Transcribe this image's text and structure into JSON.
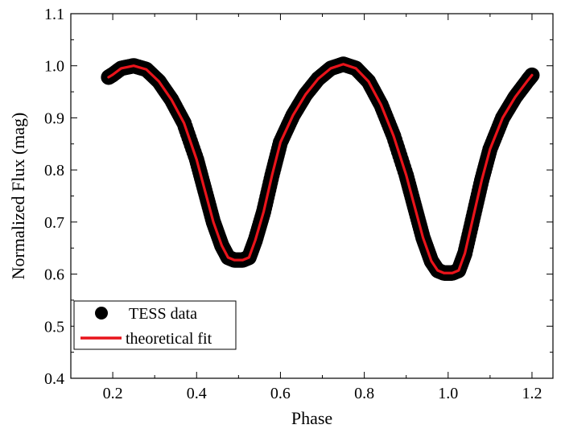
{
  "chart_data": {
    "type": "scatter",
    "xlabel": "Phase",
    "ylabel": "Normalized Flux (mag)",
    "xlim": [
      0.1,
      1.25
    ],
    "ylim": [
      0.4,
      1.1
    ],
    "x_ticks": [
      0.2,
      0.4,
      0.6,
      0.8,
      1.0,
      1.2
    ],
    "x_tick_labels": [
      "0.2",
      "0.4",
      "0.6",
      "0.8",
      "1.0",
      "1.2"
    ],
    "y_ticks": [
      0.4,
      0.5,
      0.6,
      0.7,
      0.8,
      0.9,
      1.0,
      1.1
    ],
    "y_tick_labels": [
      "0.4",
      "0.5",
      "0.6",
      "0.7",
      "0.8",
      "0.9",
      "1.0",
      "1.1"
    ],
    "grid": false,
    "legend_position": "bottom-left",
    "colors": {
      "data": "#000000",
      "fit": "#e8141b"
    },
    "series": [
      {
        "name": "TESS data",
        "kind": "scatter",
        "color": "#000000",
        "x": [
          0.19,
          0.2,
          0.22,
          0.25,
          0.28,
          0.31,
          0.34,
          0.37,
          0.4,
          0.42,
          0.44,
          0.46,
          0.475,
          0.49,
          0.5,
          0.51,
          0.525,
          0.54,
          0.56,
          0.58,
          0.6,
          0.63,
          0.66,
          0.69,
          0.72,
          0.75,
          0.78,
          0.81,
          0.84,
          0.87,
          0.9,
          0.92,
          0.94,
          0.96,
          0.975,
          0.99,
          1.0,
          1.01,
          1.025,
          1.04,
          1.06,
          1.08,
          1.1,
          1.13,
          1.16,
          1.19,
          1.2
        ],
        "y": [
          0.978,
          0.983,
          0.995,
          1.0,
          0.993,
          0.97,
          0.935,
          0.89,
          0.82,
          0.76,
          0.7,
          0.655,
          0.632,
          0.627,
          0.627,
          0.627,
          0.632,
          0.665,
          0.72,
          0.79,
          0.853,
          0.905,
          0.945,
          0.975,
          0.995,
          1.003,
          0.995,
          0.97,
          0.925,
          0.865,
          0.79,
          0.73,
          0.67,
          0.625,
          0.607,
          0.602,
          0.602,
          0.602,
          0.607,
          0.64,
          0.71,
          0.78,
          0.84,
          0.9,
          0.94,
          0.972,
          0.982
        ]
      },
      {
        "name": "theoretical fit",
        "kind": "line",
        "color": "#e8141b",
        "x": [
          0.19,
          0.2,
          0.22,
          0.25,
          0.28,
          0.31,
          0.34,
          0.37,
          0.4,
          0.42,
          0.44,
          0.46,
          0.475,
          0.49,
          0.5,
          0.51,
          0.525,
          0.54,
          0.56,
          0.58,
          0.6,
          0.63,
          0.66,
          0.69,
          0.72,
          0.75,
          0.78,
          0.81,
          0.84,
          0.87,
          0.9,
          0.92,
          0.94,
          0.96,
          0.975,
          0.99,
          1.0,
          1.01,
          1.025,
          1.04,
          1.06,
          1.08,
          1.1,
          1.13,
          1.16,
          1.19,
          1.2
        ],
        "y": [
          0.978,
          0.983,
          0.995,
          1.0,
          0.993,
          0.97,
          0.935,
          0.89,
          0.82,
          0.76,
          0.7,
          0.655,
          0.632,
          0.627,
          0.627,
          0.627,
          0.632,
          0.665,
          0.72,
          0.79,
          0.853,
          0.905,
          0.945,
          0.975,
          0.995,
          1.003,
          0.995,
          0.97,
          0.925,
          0.865,
          0.79,
          0.73,
          0.67,
          0.625,
          0.607,
          0.602,
          0.602,
          0.602,
          0.607,
          0.64,
          0.71,
          0.78,
          0.84,
          0.9,
          0.94,
          0.972,
          0.982
        ]
      }
    ]
  }
}
